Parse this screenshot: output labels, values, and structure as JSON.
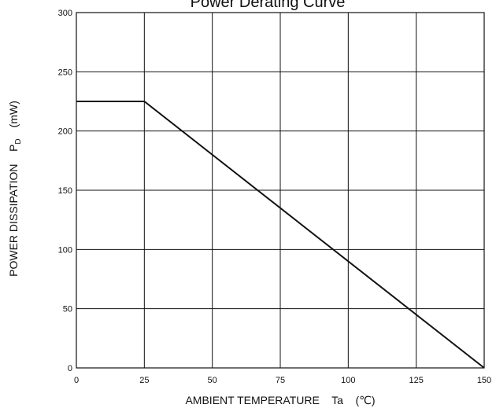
{
  "chart_data": {
    "type": "line",
    "title": "Power Derating Curve",
    "xlabel": "AMBIENT TEMPERATURE    Ta    (℃)",
    "ylabel": "POWER DISSIPATION    P",
    "ylabel_subscript": "D",
    "ylabel_unit": "(mW)",
    "xlim": [
      0,
      150
    ],
    "ylim": [
      0,
      300
    ],
    "x_ticks": [
      0,
      25,
      50,
      75,
      100,
      125,
      150
    ],
    "y_ticks": [
      0,
      50,
      100,
      150,
      200,
      250,
      300
    ],
    "grid": true,
    "series": [
      {
        "x": [
          0,
          25,
          150
        ],
        "y": [
          225,
          225,
          0
        ]
      }
    ]
  },
  "colors": {
    "line": "#111111",
    "grid": "#111111",
    "background": "#ffffff"
  }
}
